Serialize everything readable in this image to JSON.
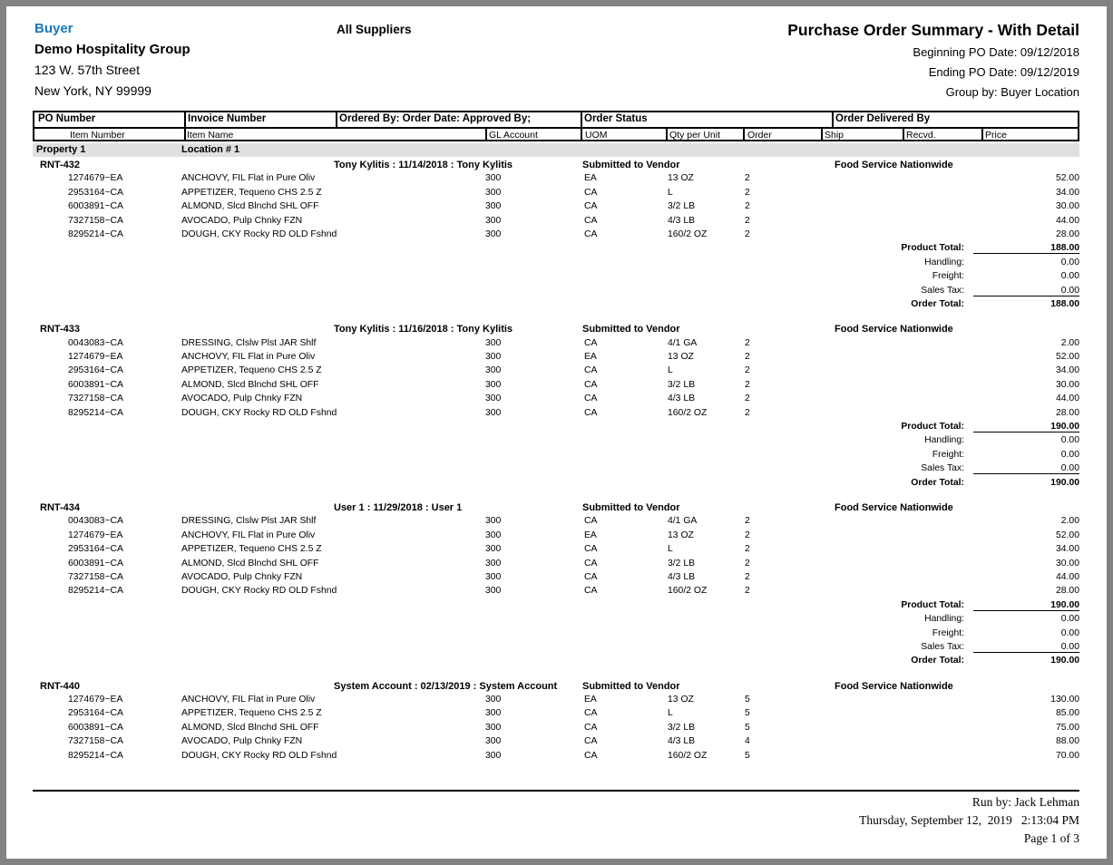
{
  "colors": {
    "accent_blue": "#1778be",
    "band_gray": "#e0e0e0",
    "frame_gray": "#838383"
  },
  "header": {
    "buyer_label": "Buyer",
    "buyer_name": "Demo Hospitality Group",
    "address_line1": "123 W. 57th Street",
    "address_line2": "New York, NY 99999",
    "suppliers": "All Suppliers",
    "title": "Purchase Order Summary - With Detail",
    "beginning_po_date": "Beginning PO Date: 09/12/2018",
    "ending_po_date": "Ending PO Date: 09/12/2019",
    "group_by": "Group by: Buyer Location"
  },
  "table": {
    "header_row1": {
      "po_number": "PO Number",
      "invoice_number": "Invoice Number",
      "ordered_by": "Ordered By: Order Date: Approved By;",
      "order_status": "Order Status",
      "order_delivered_by": "Order Delivered By"
    },
    "header_row2": {
      "item_number": "Item Number",
      "item_name": "Item Name",
      "gl_account": "GL Account",
      "uom": "UOM",
      "qty_per_unit": "Qty per Unit",
      "order": "Order",
      "ship": "Ship",
      "recvd": "Recvd.",
      "price": "Price"
    },
    "group_band": {
      "property": "Property 1",
      "location": "Location # 1"
    }
  },
  "totals_labels": {
    "product": "Product Total:",
    "handling": "Handling:",
    "freight": "Freight:",
    "sales_tax": "Sales Tax:",
    "order": "Order Total:"
  },
  "orders": [
    {
      "po_number": "RNT-432",
      "ordered_by": "Tony Kylitis : 11/14/2018 : Tony Kylitis",
      "status": "Submitted to Vendor",
      "delivered_by": "Food Service Nationwide",
      "items": [
        {
          "num": "1274679~EA",
          "name": "ANCHOVY, FIL Flat in Pure Oliv",
          "gl": "300",
          "uom": "EA",
          "qty": "13 OZ",
          "order": "2",
          "ship": "",
          "recvd": "",
          "price": "52.00"
        },
        {
          "num": "2953164~CA",
          "name": "APPETIZER, Tequeno CHS 2.5 Z",
          "gl": "300",
          "uom": "CA",
          "qty": "L",
          "order": "2",
          "ship": "",
          "recvd": "",
          "price": "34.00"
        },
        {
          "num": "6003891~CA",
          "name": "ALMOND, Slcd Blnchd SHL OFF",
          "gl": "300",
          "uom": "CA",
          "qty": "3/2 LB",
          "order": "2",
          "ship": "",
          "recvd": "",
          "price": "30.00"
        },
        {
          "num": "7327158~CA",
          "name": "AVOCADO, Pulp Chnky FZN",
          "gl": "300",
          "uom": "CA",
          "qty": "4/3 LB",
          "order": "2",
          "ship": "",
          "recvd": "",
          "price": "44.00"
        },
        {
          "num": "8295214~CA",
          "name": "DOUGH, CKY Rocky RD OLD Fshnd",
          "gl": "300",
          "uom": "CA",
          "qty": "160/2 OZ",
          "order": "2",
          "ship": "",
          "recvd": "",
          "price": "28.00"
        }
      ],
      "totals": {
        "product": "188.00",
        "handling": "0.00",
        "freight": "0.00",
        "sales_tax": "0.00",
        "order_total": "188.00"
      }
    },
    {
      "po_number": "RNT-433",
      "ordered_by": "Tony Kylitis : 11/16/2018 : Tony Kylitis",
      "status": "Submitted to Vendor",
      "delivered_by": "Food Service Nationwide",
      "items": [
        {
          "num": "0043083~CA",
          "name": "DRESSING, Clslw Plst JAR Shlf",
          "gl": "300",
          "uom": "CA",
          "qty": "4/1 GA",
          "order": "2",
          "ship": "",
          "recvd": "",
          "price": "2.00"
        },
        {
          "num": "1274679~EA",
          "name": "ANCHOVY, FIL Flat in Pure Oliv",
          "gl": "300",
          "uom": "EA",
          "qty": "13 OZ",
          "order": "2",
          "ship": "",
          "recvd": "",
          "price": "52.00"
        },
        {
          "num": "2953164~CA",
          "name": "APPETIZER, Tequeno CHS 2.5 Z",
          "gl": "300",
          "uom": "CA",
          "qty": "L",
          "order": "2",
          "ship": "",
          "recvd": "",
          "price": "34.00"
        },
        {
          "num": "6003891~CA",
          "name": "ALMOND, Slcd Blnchd SHL OFF",
          "gl": "300",
          "uom": "CA",
          "qty": "3/2 LB",
          "order": "2",
          "ship": "",
          "recvd": "",
          "price": "30.00"
        },
        {
          "num": "7327158~CA",
          "name": "AVOCADO, Pulp Chnky FZN",
          "gl": "300",
          "uom": "CA",
          "qty": "4/3 LB",
          "order": "2",
          "ship": "",
          "recvd": "",
          "price": "44.00"
        },
        {
          "num": "8295214~CA",
          "name": "DOUGH, CKY Rocky RD OLD Fshnd",
          "gl": "300",
          "uom": "CA",
          "qty": "160/2 OZ",
          "order": "2",
          "ship": "",
          "recvd": "",
          "price": "28.00"
        }
      ],
      "totals": {
        "product": "190.00",
        "handling": "0.00",
        "freight": "0.00",
        "sales_tax": "0.00",
        "order_total": "190.00"
      }
    },
    {
      "po_number": "RNT-434",
      "ordered_by": "User 1 : 11/29/2018 : User 1",
      "status": "Submitted to Vendor",
      "delivered_by": "Food Service Nationwide",
      "items": [
        {
          "num": "0043083~CA",
          "name": "DRESSING, Clslw Plst JAR Shlf",
          "gl": "300",
          "uom": "CA",
          "qty": "4/1 GA",
          "order": "2",
          "ship": "",
          "recvd": "",
          "price": "2.00"
        },
        {
          "num": "1274679~EA",
          "name": "ANCHOVY, FIL Flat in Pure Oliv",
          "gl": "300",
          "uom": "EA",
          "qty": "13 OZ",
          "order": "2",
          "ship": "",
          "recvd": "",
          "price": "52.00"
        },
        {
          "num": "2953164~CA",
          "name": "APPETIZER, Tequeno CHS 2.5 Z",
          "gl": "300",
          "uom": "CA",
          "qty": "L",
          "order": "2",
          "ship": "",
          "recvd": "",
          "price": "34.00"
        },
        {
          "num": "6003891~CA",
          "name": "ALMOND, Slcd Blnchd SHL OFF",
          "gl": "300",
          "uom": "CA",
          "qty": "3/2 LB",
          "order": "2",
          "ship": "",
          "recvd": "",
          "price": "30.00"
        },
        {
          "num": "7327158~CA",
          "name": "AVOCADO, Pulp Chnky FZN",
          "gl": "300",
          "uom": "CA",
          "qty": "4/3 LB",
          "order": "2",
          "ship": "",
          "recvd": "",
          "price": "44.00"
        },
        {
          "num": "8295214~CA",
          "name": "DOUGH, CKY Rocky RD OLD Fshnd",
          "gl": "300",
          "uom": "CA",
          "qty": "160/2 OZ",
          "order": "2",
          "ship": "",
          "recvd": "",
          "price": "28.00"
        }
      ],
      "totals": {
        "product": "190.00",
        "handling": "0.00",
        "freight": "0.00",
        "sales_tax": "0.00",
        "order_total": "190.00"
      }
    },
    {
      "po_number": "RNT-440",
      "ordered_by": "System Account : 02/13/2019 : System Account",
      "status": "Submitted to Vendor",
      "delivered_by": "Food Service Nationwide",
      "items": [
        {
          "num": "1274679~EA",
          "name": "ANCHOVY, FIL Flat in Pure Oliv",
          "gl": "300",
          "uom": "EA",
          "qty": "13 OZ",
          "order": "5",
          "ship": "",
          "recvd": "",
          "price": "130.00"
        },
        {
          "num": "2953164~CA",
          "name": "APPETIZER, Tequeno CHS 2.5 Z",
          "gl": "300",
          "uom": "CA",
          "qty": "L",
          "order": "5",
          "ship": "",
          "recvd": "",
          "price": "85.00"
        },
        {
          "num": "6003891~CA",
          "name": "ALMOND, Slcd Blnchd SHL OFF",
          "gl": "300",
          "uom": "CA",
          "qty": "3/2 LB",
          "order": "5",
          "ship": "",
          "recvd": "",
          "price": "75.00"
        },
        {
          "num": "7327158~CA",
          "name": "AVOCADO, Pulp Chnky FZN",
          "gl": "300",
          "uom": "CA",
          "qty": "4/3 LB",
          "order": "4",
          "ship": "",
          "recvd": "",
          "price": "88.00"
        },
        {
          "num": "8295214~CA",
          "name": "DOUGH, CKY Rocky RD OLD Fshnd",
          "gl": "300",
          "uom": "CA",
          "qty": "160/2 OZ",
          "order": "5",
          "ship": "",
          "recvd": "",
          "price": "70.00"
        }
      ],
      "totals": null
    }
  ],
  "footer": {
    "run_by": "Run by: Jack Lehman",
    "run_date": "Thursday, September 12,  2019",
    "run_time": "2:13:04 PM",
    "page": "Page 1 of 3"
  }
}
